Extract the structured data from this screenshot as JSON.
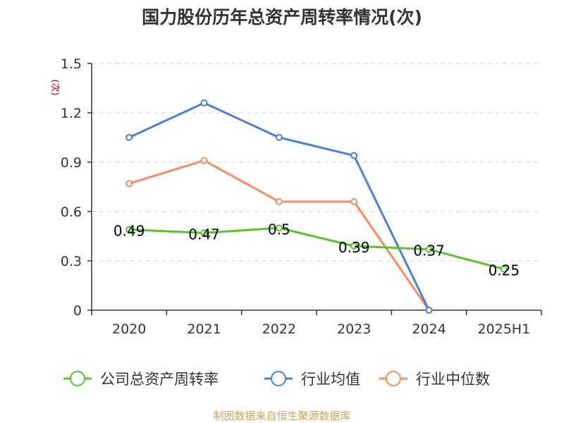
{
  "chart_data": {
    "type": "line",
    "title": "国力股份历年总资产周转率情况(次)",
    "ylabel": "(次)",
    "xlabel": "",
    "categories": [
      "2020",
      "2021",
      "2022",
      "2023",
      "2024",
      "2025H1"
    ],
    "ylim": [
      0,
      1.5
    ],
    "yticks": [
      0,
      0.3,
      0.6,
      0.9,
      1.2,
      1.5
    ],
    "ytick_labels": [
      "0",
      "0.3",
      "0.6",
      "0.9",
      "1.2",
      "1.5"
    ],
    "grid": true,
    "legend_position": "bottom",
    "series": [
      {
        "name": "公司总资产周转率",
        "color": "#5cc22a",
        "values": [
          0.49,
          0.47,
          0.5,
          0.39,
          0.37,
          0.25
        ],
        "data_labels": [
          "0.49",
          "0.47",
          "0.5",
          "0.39",
          "0.37",
          "0.25"
        ]
      },
      {
        "name": "行业均值",
        "color": "#4a7fd8",
        "values": [
          1.05,
          1.26,
          1.05,
          0.94,
          0.0,
          null
        ]
      },
      {
        "name": "行业中位数",
        "color": "#f78c5c",
        "values": [
          0.77,
          0.91,
          0.66,
          0.66,
          0.0,
          null
        ]
      }
    ]
  },
  "source": "制图数据来自恒生聚源数据库"
}
